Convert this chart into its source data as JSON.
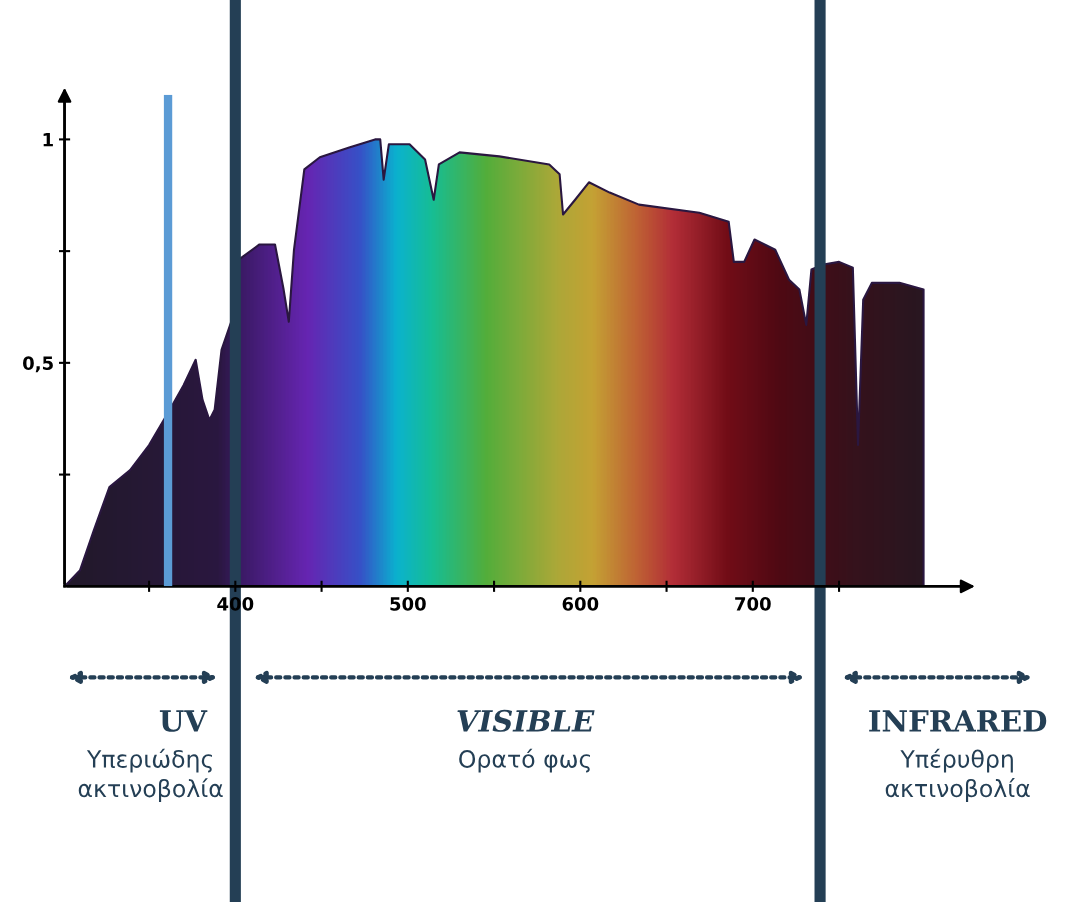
{
  "chart_data": {
    "type": "area",
    "color": "#2a1740",
    "x": [
      301,
      310,
      318,
      327,
      339,
      350,
      362,
      370,
      377,
      381,
      385,
      388,
      392,
      398,
      402,
      414,
      423,
      428,
      431,
      434,
      440,
      449,
      466,
      481,
      484,
      486,
      489,
      501,
      510,
      515,
      518,
      530,
      553,
      582,
      588,
      590,
      597,
      605,
      617,
      634,
      669,
      686,
      689,
      695,
      701,
      713,
      721,
      727,
      731,
      734,
      741,
      750,
      758,
      761,
      764,
      769,
      785,
      799,
      799
    ],
    "values": [
      0,
      0.036,
      0.126,
      0.222,
      0.26,
      0.316,
      0.395,
      0.45,
      0.507,
      0.417,
      0.372,
      0.395,
      0.529,
      0.596,
      0.731,
      0.765,
      0.765,
      0.664,
      0.592,
      0.753,
      0.933,
      0.96,
      0.982,
      1.0,
      1.0,
      0.91,
      0.989,
      0.989,
      0.955,
      0.865,
      0.944,
      0.971,
      0.962,
      0.944,
      0.922,
      0.832,
      0.865,
      0.904,
      0.881,
      0.854,
      0.836,
      0.816,
      0.726,
      0.726,
      0.776,
      0.753,
      0.686,
      0.664,
      0.585,
      0.709,
      0.72,
      0.726,
      0.713,
      0.316,
      0.641,
      0.679,
      0.679,
      0.664,
      0
    ],
    "xlim": [
      301,
      820
    ],
    "ylim": [
      0,
      1.1
    ],
    "xticks": [
      {
        "value": 350,
        "label": null
      },
      400,
      {
        "value": 450,
        "label": null
      },
      500,
      {
        "value": 550,
        "label": null
      },
      600,
      {
        "value": 650,
        "label": null
      },
      700,
      {
        "value": 750,
        "label": null
      }
    ],
    "yticks": [
      {
        "value": 0.25,
        "label": null
      },
      {
        "value": 0.5,
        "label": "0,5"
      },
      {
        "value": 0.75,
        "label": null
      },
      1
    ],
    "ref_lines": [
      {
        "axis": "x",
        "value": 361,
        "color": "#5b9bd5"
      },
      {
        "axis": "x",
        "value": 400,
        "color": "#243f55"
      },
      {
        "axis": "x",
        "value": 739,
        "color": "#243f55"
      }
    ],
    "annotations": [
      "UV",
      "Υπεριώδης\nακτινοβολία",
      "VISIBLE",
      "Ορατό φως",
      "INFRARED",
      "Υπέρυθρη\nακτινοβολία"
    ]
  }
}
